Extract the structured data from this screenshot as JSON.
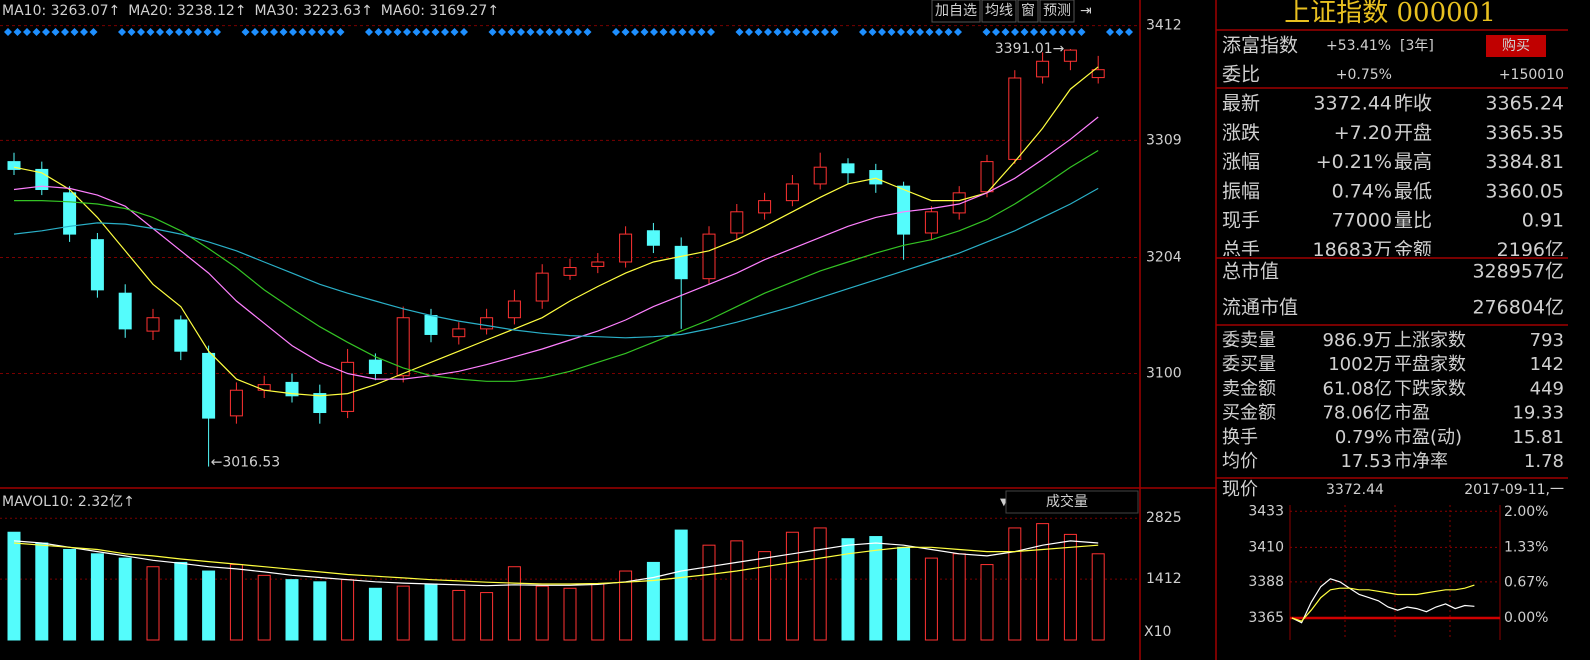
{
  "header": {
    "legend": [
      {
        "text": "MA10: 3263.07↑",
        "color": "#ffff40"
      },
      {
        "text": "MA20: 3238.12↑",
        "color": "#ff80ff"
      },
      {
        "text": "MA30: 3223.63↑",
        "color": "#00e000"
      },
      {
        "text": "MA60: 3169.27↑",
        "color": "#20c8ff"
      }
    ],
    "buttons": [
      "加自选",
      "均线",
      "窗",
      "预测"
    ]
  },
  "chart_data": [
    {
      "type": "candlestick",
      "up_color": "#ff3232",
      "down_color": "#54fcfc",
      "open": [
        3290,
        3283,
        3262,
        3220,
        3172,
        3138,
        3148,
        3118,
        3062,
        3085,
        3092,
        3082,
        3066,
        3112,
        3098,
        3152,
        3133,
        3140,
        3150,
        3165,
        3188,
        3196,
        3200,
        3228,
        3214,
        3185,
        3226,
        3244,
        3255,
        3270,
        3288,
        3282,
        3268,
        3226,
        3244,
        3263,
        3292,
        3366,
        3380,
        3365.35
      ],
      "high": [
        3298,
        3290,
        3268,
        3226,
        3180,
        3158,
        3152,
        3125,
        3092,
        3098,
        3100,
        3090,
        3122,
        3118,
        3160,
        3158,
        3146,
        3158,
        3175,
        3198,
        3203,
        3208,
        3232,
        3235,
        3222,
        3232,
        3252,
        3262,
        3278,
        3298,
        3293,
        3288,
        3272,
        3250,
        3268,
        3296,
        3372,
        3388,
        3391.01,
        3384.81
      ],
      "low": [
        3278,
        3260,
        3218,
        3168,
        3132,
        3130,
        3112,
        3016.53,
        3055,
        3078,
        3074,
        3055,
        3060,
        3094,
        3092,
        3128,
        3126,
        3135,
        3144,
        3158,
        3184,
        3190,
        3195,
        3208,
        3140,
        3180,
        3220,
        3238,
        3250,
        3265,
        3270,
        3262,
        3202,
        3220,
        3238,
        3258,
        3288,
        3360,
        3372,
        3360.05
      ],
      "close": [
        3283,
        3265,
        3225,
        3175,
        3140,
        3150,
        3120,
        3060,
        3085,
        3090,
        3080,
        3065,
        3110,
        3100,
        3150,
        3135,
        3140,
        3150,
        3165,
        3190,
        3195,
        3200,
        3225,
        3215,
        3185,
        3225,
        3245,
        3255,
        3270,
        3285,
        3280,
        3270,
        3225,
        3245,
        3262,
        3290,
        3365,
        3380,
        3390,
        3372.44
      ],
      "lines": [
        {
          "color": "#ffff40",
          "values": [
            3285,
            3280,
            3265,
            3240,
            3210,
            3180,
            3160,
            3120,
            3095,
            3085,
            3082,
            3080,
            3082,
            3090,
            3100,
            3110,
            3120,
            3130,
            3140,
            3150,
            3165,
            3178,
            3190,
            3200,
            3205,
            3210,
            3220,
            3232,
            3245,
            3258,
            3270,
            3275,
            3265,
            3255,
            3255,
            3262,
            3290,
            3320,
            3355,
            3375
          ]
        },
        {
          "color": "#ff80ff",
          "values": [
            3265,
            3268,
            3266,
            3260,
            3250,
            3230,
            3210,
            3190,
            3165,
            3145,
            3125,
            3110,
            3100,
            3095,
            3095,
            3098,
            3102,
            3108,
            3115,
            3122,
            3130,
            3138,
            3148,
            3160,
            3170,
            3180,
            3190,
            3202,
            3212,
            3222,
            3232,
            3240,
            3245,
            3248,
            3252,
            3262,
            3275,
            3292,
            3310,
            3330
          ]
        },
        {
          "color": "#34c324",
          "values": [
            3255,
            3255,
            3254,
            3252,
            3248,
            3240,
            3228,
            3212,
            3195,
            3175,
            3158,
            3142,
            3128,
            3115,
            3105,
            3098,
            3095,
            3093,
            3093,
            3096,
            3102,
            3110,
            3118,
            3128,
            3138,
            3148,
            3160,
            3172,
            3182,
            3192,
            3200,
            3208,
            3215,
            3220,
            3228,
            3238,
            3252,
            3268,
            3285,
            3300
          ]
        },
        {
          "color": "#2ab0c8",
          "values": [
            3225,
            3228,
            3232,
            3235,
            3234,
            3230,
            3225,
            3218,
            3210,
            3200,
            3190,
            3180,
            3172,
            3165,
            3158,
            3152,
            3147,
            3143,
            3139,
            3136,
            3134,
            3133,
            3132,
            3133,
            3135,
            3140,
            3146,
            3153,
            3160,
            3168,
            3176,
            3184,
            3192,
            3200,
            3208,
            3218,
            3228,
            3240,
            3252,
            3266
          ]
        }
      ],
      "ylim": [
        3000,
        3417
      ],
      "yticks": [
        3100,
        3204,
        3309,
        3412
      ],
      "grid": true,
      "high_label": "3391.01→",
      "low_label": "←3016.53"
    },
    {
      "type": "bar",
      "title": "MAVOL10: 2.32亿↑",
      "selector": "成交量",
      "unit_label": "X10",
      "values": [
        2500,
        2250,
        2100,
        2000,
        1900,
        1700,
        1800,
        1600,
        1750,
        1500,
        1400,
        1350,
        1400,
        1200,
        1250,
        1300,
        1150,
        1100,
        1700,
        1250,
        1200,
        1300,
        1600,
        1800,
        2550,
        2200,
        2300,
        2050,
        2500,
        2600,
        2350,
        2400,
        2150,
        1900,
        2000,
        1750,
        2600,
        2700,
        2450,
        2000
      ],
      "lines": [
        {
          "color": "#ffffff",
          "values": [
            2300,
            2250,
            2150,
            2050,
            1950,
            1850,
            1780,
            1700,
            1650,
            1580,
            1500,
            1450,
            1400,
            1350,
            1320,
            1300,
            1280,
            1260,
            1280,
            1270,
            1270,
            1290,
            1350,
            1450,
            1600,
            1700,
            1800,
            1900,
            2000,
            2100,
            2200,
            2250,
            2200,
            2100,
            2000,
            1950,
            2050,
            2200,
            2300,
            2250
          ]
        },
        {
          "color": "#ffff40",
          "values": [
            2250,
            2200,
            2150,
            2100,
            2000,
            1950,
            1880,
            1820,
            1760,
            1700,
            1640,
            1580,
            1520,
            1480,
            1440,
            1400,
            1370,
            1340,
            1320,
            1300,
            1300,
            1310,
            1340,
            1380,
            1450,
            1520,
            1600,
            1700,
            1800,
            1900,
            2000,
            2080,
            2150,
            2150,
            2100,
            2050,
            2050,
            2100,
            2150,
            2200
          ]
        }
      ],
      "ylim": [
        0,
        2900
      ],
      "yticks": [
        1412,
        2825
      ],
      "grid": true
    },
    {
      "type": "line",
      "series": [
        {
          "color": "#ffffff",
          "values": [
            3365,
            3362,
            3375,
            3385,
            3390,
            3388,
            3384,
            3380,
            3378,
            3376,
            3372,
            3370,
            3372,
            3371,
            3369,
            3372,
            3374,
            3371,
            3373,
            3372.44
          ]
        },
        {
          "color": "#ffff40",
          "values": [
            3365,
            3363,
            3370,
            3378,
            3383,
            3384,
            3384,
            3383,
            3383,
            3382,
            3381,
            3380,
            3380,
            3380,
            3381,
            3382,
            3383,
            3383,
            3384,
            3386
          ]
        }
      ],
      "ylim": [
        3351,
        3437
      ],
      "yticks": [
        3365,
        3388,
        3410,
        3433
      ],
      "y2lim": [
        -0.42,
        2.13
      ],
      "y2ticks": [
        {
          "value": 0,
          "label": "0.00%"
        },
        {
          "value": 0.67,
          "label": "0.67%"
        },
        {
          "value": 1.33,
          "label": "1.33%"
        },
        {
          "value": 2,
          "label": "2.00%"
        }
      ],
      "grid": true
    }
  ],
  "info": {
    "title": "上证指数 000001",
    "fund": {
      "label": "添富指数",
      "value": "+53.41%",
      "period": "[3年]",
      "button": "购买"
    },
    "ratio": {
      "label": "委比",
      "value": "+0.75%",
      "extra": "+150010"
    },
    "quote": [
      [
        {
          "label": "最新",
          "value": "3372.44",
          "color": "#ff3232"
        },
        {
          "label": "昨收",
          "value": "3365.24",
          "color": "#ffffff"
        }
      ],
      [
        {
          "label": "涨跌",
          "value": "+7.20",
          "color": "#ff3232"
        },
        {
          "label": "开盘",
          "value": "3365.35",
          "color": "#ff3232"
        }
      ],
      [
        {
          "label": "涨幅",
          "value": "+0.21%",
          "color": "#ff3232"
        },
        {
          "label": "最高",
          "value": "3384.81",
          "color": "#ff3232"
        }
      ],
      [
        {
          "label": "振幅",
          "value": "0.74%",
          "color": "#54fcfc"
        },
        {
          "label": "最低",
          "value": "3360.05",
          "color": "#00e600"
        }
      ],
      [
        {
          "label": "现手",
          "value": "77000",
          "color": "#54fcfc"
        },
        {
          "label": "量比",
          "value": "0.91",
          "color": "#00e600"
        }
      ],
      [
        {
          "label": "总手",
          "value": "18683万",
          "color": "#54fcfc"
        },
        {
          "label": "金额",
          "value": "2196亿",
          "color": "#54fcfc"
        }
      ]
    ],
    "cap": [
      {
        "label": "总市值",
        "value": "328957亿",
        "color": "#54fcfc"
      },
      {
        "label": "流通市值",
        "value": "276804亿",
        "color": "#ff3232"
      }
    ],
    "market": [
      [
        {
          "label": "委卖量",
          "value": "986.9万",
          "color": "#ffffff"
        },
        {
          "label": "上涨家数",
          "value": "793",
          "color": "#ff3232"
        }
      ],
      [
        {
          "label": "委买量",
          "value": "1002万",
          "color": "#ff3232"
        },
        {
          "label": "平盘家数",
          "value": "142",
          "color": "#ffffff"
        }
      ],
      [
        {
          "label": "卖金额",
          "value": "61.08亿",
          "color": "#54fcfc"
        },
        {
          "label": "下跌家数",
          "value": "449",
          "color": "#00e600"
        }
      ],
      [
        {
          "label": "买金额",
          "value": "78.06亿",
          "color": "#54fcfc"
        },
        {
          "label": "市盈",
          "value": "19.33",
          "color": "#ffffff"
        }
      ],
      [
        {
          "label": "换手",
          "value": "0.79%",
          "color": "#54fcfc"
        },
        {
          "label": "市盈(动)",
          "value": "15.81",
          "color": "#ffffff"
        }
      ],
      [
        {
          "label": "均价",
          "value": "17.53",
          "color": "#00e600"
        },
        {
          "label": "市净率",
          "value": "1.78",
          "color": "#ffffff"
        }
      ]
    ],
    "price": {
      "label": "现价",
      "value": "3372.44",
      "date": "2017-09-11,一"
    }
  }
}
